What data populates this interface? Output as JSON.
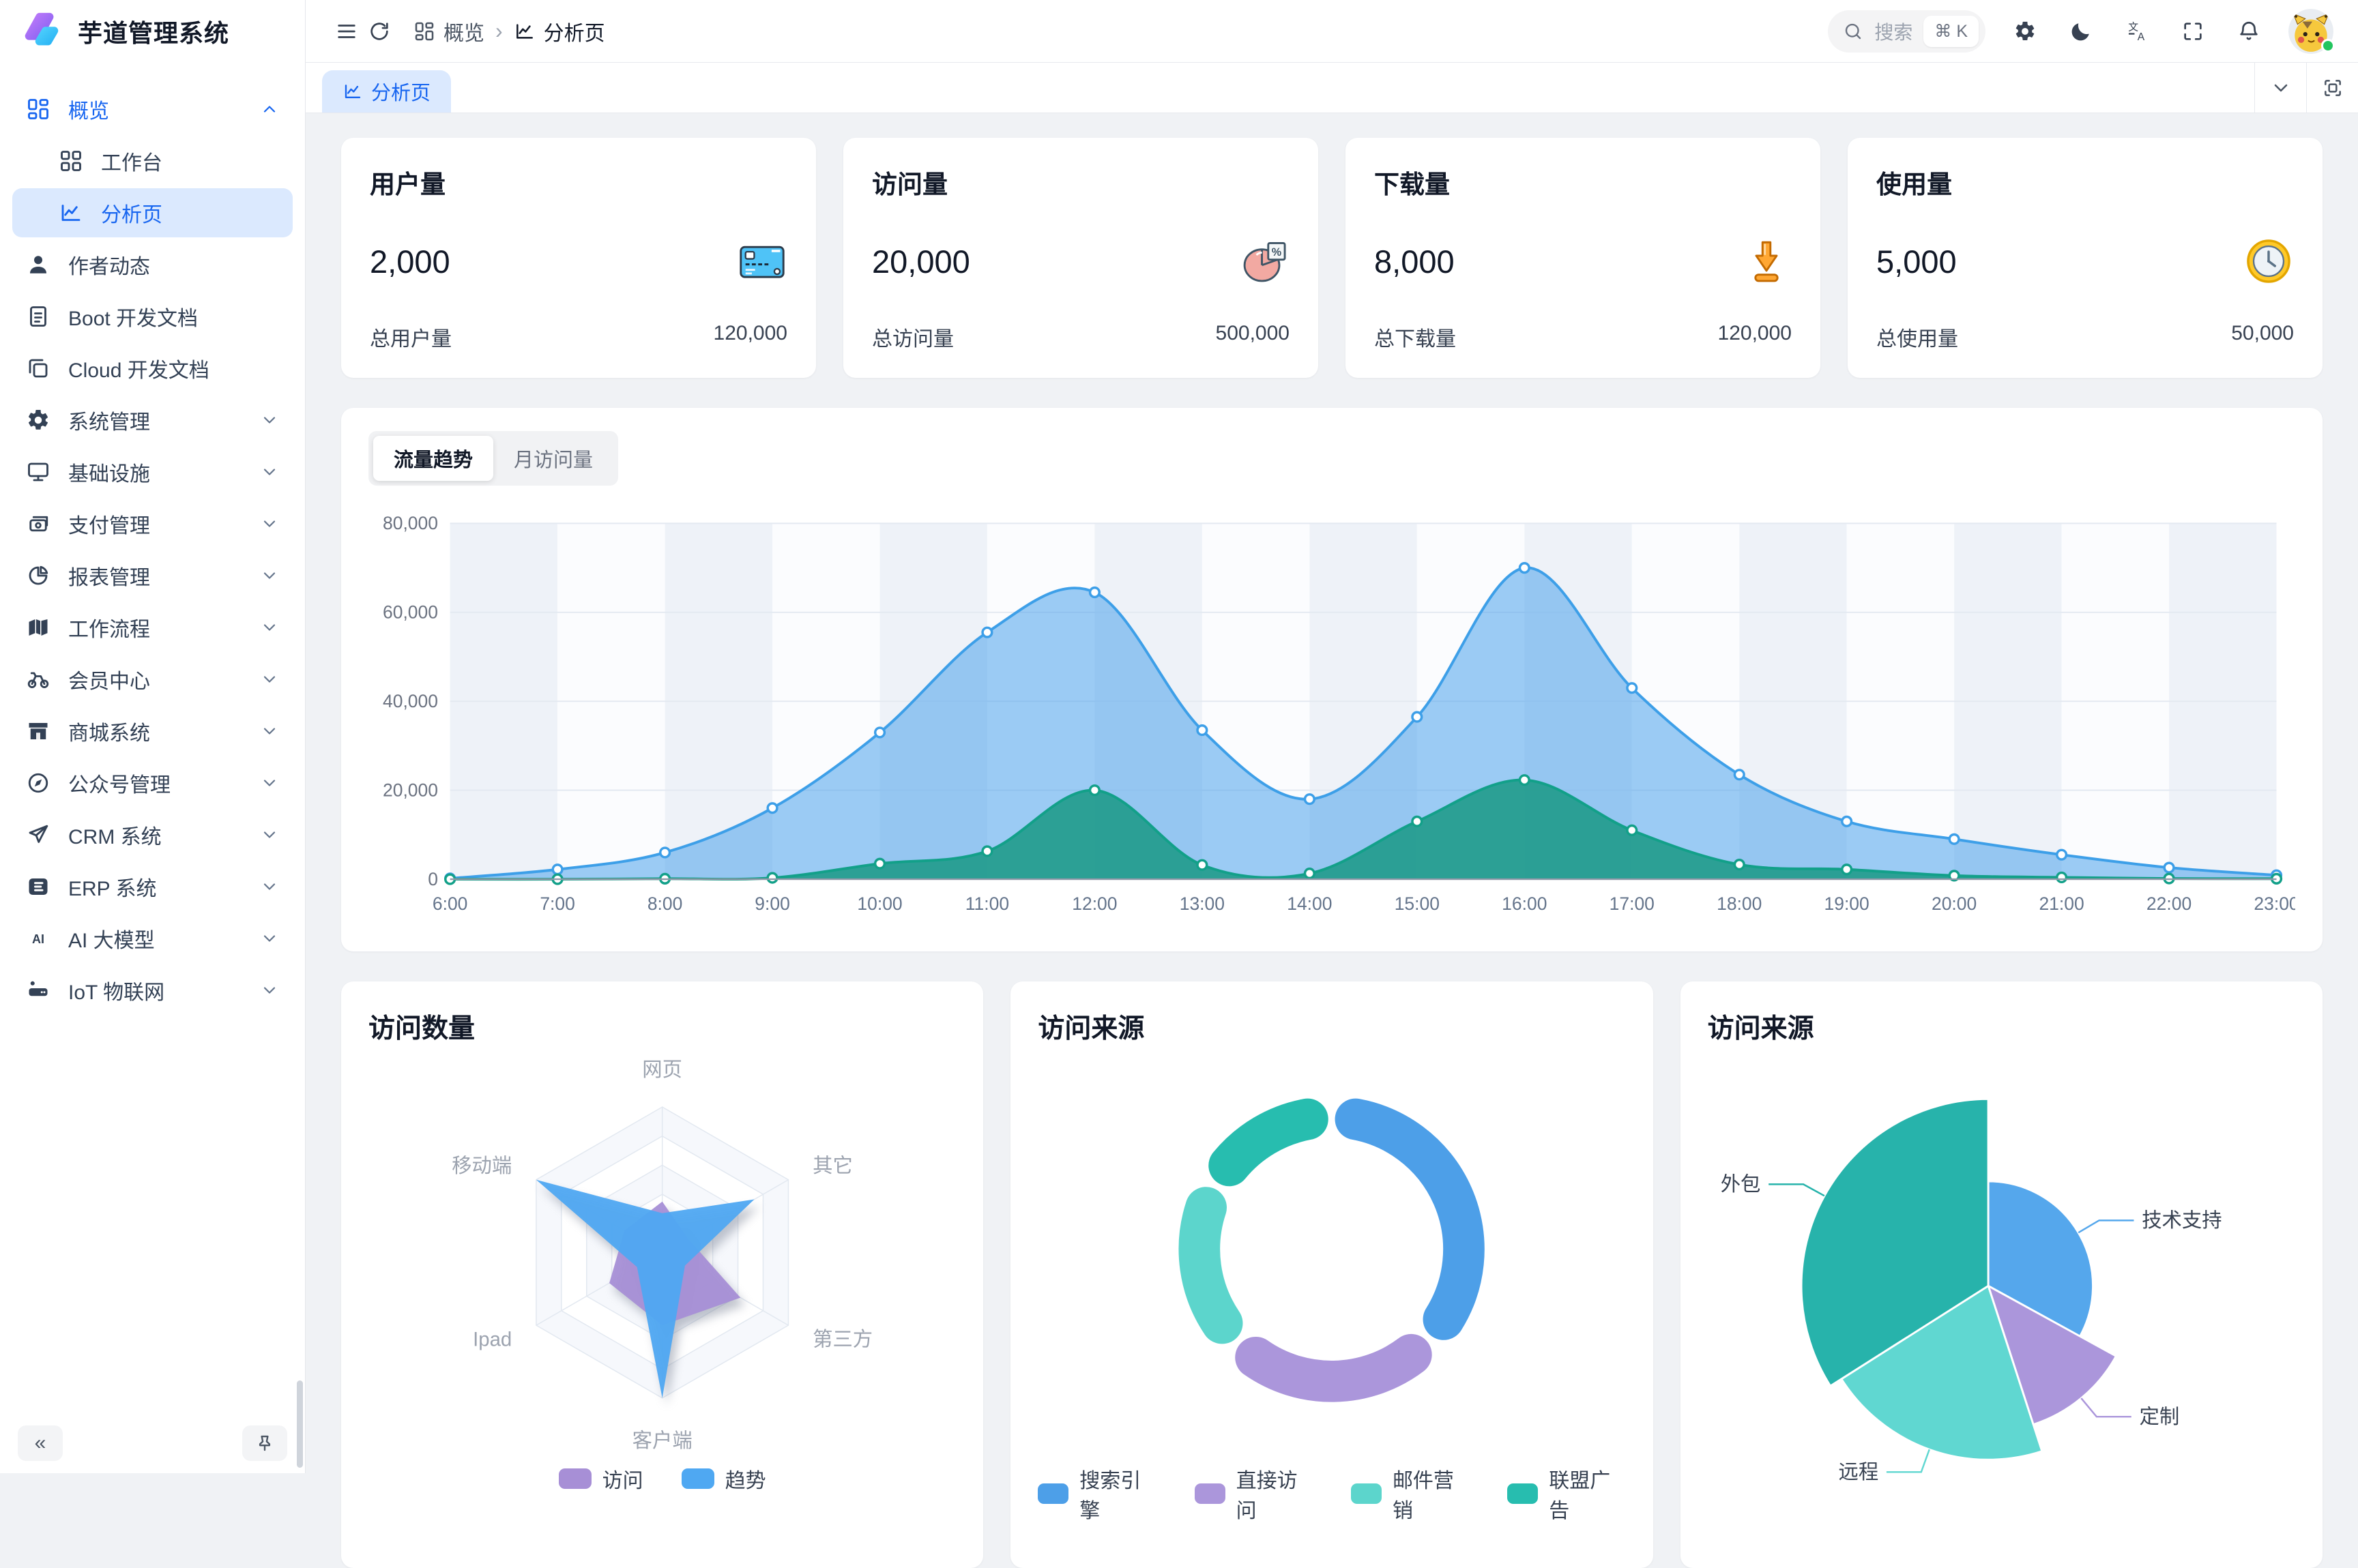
{
  "app": {
    "title": "芋道管理系统"
  },
  "colors": {
    "primary": "#1765f0",
    "primary_light": "#dbe9fe",
    "content_bg": "#f0f2f5"
  },
  "sidebar": {
    "collapse_label": "«",
    "sections": [
      {
        "key": "overview",
        "label": "概览",
        "icon": "dashboard-icon",
        "state": "expanded",
        "active": true,
        "children": [
          {
            "key": "workbench",
            "label": "工作台",
            "icon": "workbench-icon"
          },
          {
            "key": "analysis",
            "label": "分析页",
            "icon": "analysis-icon",
            "active": true
          }
        ]
      },
      {
        "key": "author-news",
        "label": "作者动态",
        "icon": "user-icon"
      },
      {
        "key": "boot-docs",
        "label": "Boot 开发文档",
        "icon": "document-icon"
      },
      {
        "key": "cloud-docs",
        "label": "Cloud 开发文档",
        "icon": "copy-icon"
      },
      {
        "key": "system",
        "label": "系统管理",
        "icon": "gear-icon",
        "chevron": true
      },
      {
        "key": "infra",
        "label": "基础设施",
        "icon": "monitor-icon",
        "chevron": true
      },
      {
        "key": "payment",
        "label": "支付管理",
        "icon": "wallet-icon",
        "chevron": true
      },
      {
        "key": "report",
        "label": "报表管理",
        "icon": "pie-icon",
        "chevron": true
      },
      {
        "key": "workflow",
        "label": "工作流程",
        "icon": "workflow-icon",
        "chevron": true
      },
      {
        "key": "member",
        "label": "会员中心",
        "icon": "member-icon",
        "chevron": true
      },
      {
        "key": "mall",
        "label": "商城系统",
        "icon": "shop-icon",
        "chevron": true
      },
      {
        "key": "mp",
        "label": "公众号管理",
        "icon": "compass-icon",
        "chevron": true
      },
      {
        "key": "crm",
        "label": "CRM 系统",
        "icon": "send-icon",
        "chevron": true
      },
      {
        "key": "erp",
        "label": "ERP 系统",
        "icon": "erp-icon",
        "chevron": true
      },
      {
        "key": "ai",
        "label": "AI 大模型",
        "icon": "ai-icon",
        "chevron": true
      },
      {
        "key": "iot",
        "label": "IoT 物联网",
        "icon": "iot-icon",
        "chevron": true
      }
    ]
  },
  "topbar": {
    "breadcrumb": [
      {
        "label": "概览",
        "icon": "dashboard-icon"
      },
      {
        "label": "分析页",
        "icon": "analysis-icon"
      }
    ],
    "search": {
      "placeholder": "搜索",
      "shortcut": "⌘ K"
    }
  },
  "tabs": {
    "active": "分析页"
  },
  "stats": [
    {
      "title": "用户量",
      "value": "2,000",
      "icon": "credit-card-icon",
      "footer_label": "总用户量",
      "footer_value": "120,000"
    },
    {
      "title": "访问量",
      "value": "20,000",
      "icon": "pie-chart-icon",
      "footer_label": "总访问量",
      "footer_value": "500,000"
    },
    {
      "title": "下载量",
      "value": "8,000",
      "icon": "download-icon",
      "footer_label": "总下载量",
      "footer_value": "120,000"
    },
    {
      "title": "使用量",
      "value": "5,000",
      "icon": "clock-icon",
      "footer_label": "总使用量",
      "footer_value": "50,000"
    }
  ],
  "trend_card": {
    "tabs": [
      {
        "label": "流量趋势",
        "active": true
      },
      {
        "label": "月访问量",
        "active": false
      }
    ]
  },
  "chart_data": [
    {
      "type": "area",
      "title": "流量趋势",
      "x": [
        "6:00",
        "7:00",
        "8:00",
        "9:00",
        "10:00",
        "11:00",
        "12:00",
        "13:00",
        "14:00",
        "15:00",
        "16:00",
        "17:00",
        "18:00",
        "19:00",
        "20:00",
        "21:00",
        "22:00",
        "23:00"
      ],
      "series": [
        {
          "name": "blue-series",
          "color": "#3d9fe8",
          "fill": "rgba(77,163,235,0.55)",
          "values": [
            200,
            2200,
            6000,
            16000,
            33000,
            55500,
            64500,
            33500,
            18000,
            36500,
            70000,
            43000,
            23500,
            13000,
            9000,
            5500,
            2600,
            900
          ]
        },
        {
          "name": "green-series",
          "color": "#12a089",
          "fill": "rgba(28,154,135,0.88)",
          "values": [
            0,
            0,
            100,
            300,
            3500,
            6300,
            20000,
            3200,
            1300,
            13000,
            22300,
            11000,
            3300,
            2200,
            800,
            400,
            150,
            100
          ]
        }
      ],
      "ylim": [
        0,
        80000
      ],
      "ytick_step": 20000,
      "grid": true,
      "band_colors": [
        "#eef2f8",
        "#fbfcfe"
      ],
      "legend_position": "none"
    },
    {
      "type": "radar",
      "title": "访问数量",
      "axes": [
        "网页",
        "其它",
        "第三方",
        "客户端",
        "Ipad",
        "移动端"
      ],
      "max": 100,
      "levels": 5,
      "series": [
        {
          "name": "访问",
          "color": "#a78fd6",
          "values": [
            35,
            20,
            62,
            50,
            42,
            30
          ]
        },
        {
          "name": "趋势",
          "color": "#4fa8f2",
          "values": [
            27,
            73,
            18,
            100,
            20,
            100
          ]
        }
      ],
      "legend_position": "bottom"
    },
    {
      "type": "pie",
      "title": "访问来源",
      "style": "donut",
      "slices": [
        {
          "name": "搜索引擎",
          "value": 1048,
          "color": "#4d9fe8"
        },
        {
          "name": "直接访问",
          "value": 735,
          "color": "#ab96db"
        },
        {
          "name": "邮件营销",
          "value": 580,
          "color": "#5cd5cc"
        },
        {
          "name": "联盟广告",
          "value": 484,
          "color": "#27bdaf"
        }
      ],
      "legend_position": "bottom"
    },
    {
      "type": "pie",
      "title": "访问来源",
      "style": "rose",
      "slices": [
        {
          "name": "技术支持",
          "value": 33,
          "radius": 0.56,
          "color": "#55a7ec"
        },
        {
          "name": "定制",
          "value": 12,
          "radius": 0.78,
          "color": "#ab96db"
        },
        {
          "name": "远程",
          "value": 21,
          "radius": 0.93,
          "color": "#60d7d1"
        },
        {
          "name": "外包",
          "value": 34,
          "radius": 1.0,
          "color": "#27b3ab"
        }
      ],
      "legend_position": "labels-with-leader-lines"
    }
  ]
}
